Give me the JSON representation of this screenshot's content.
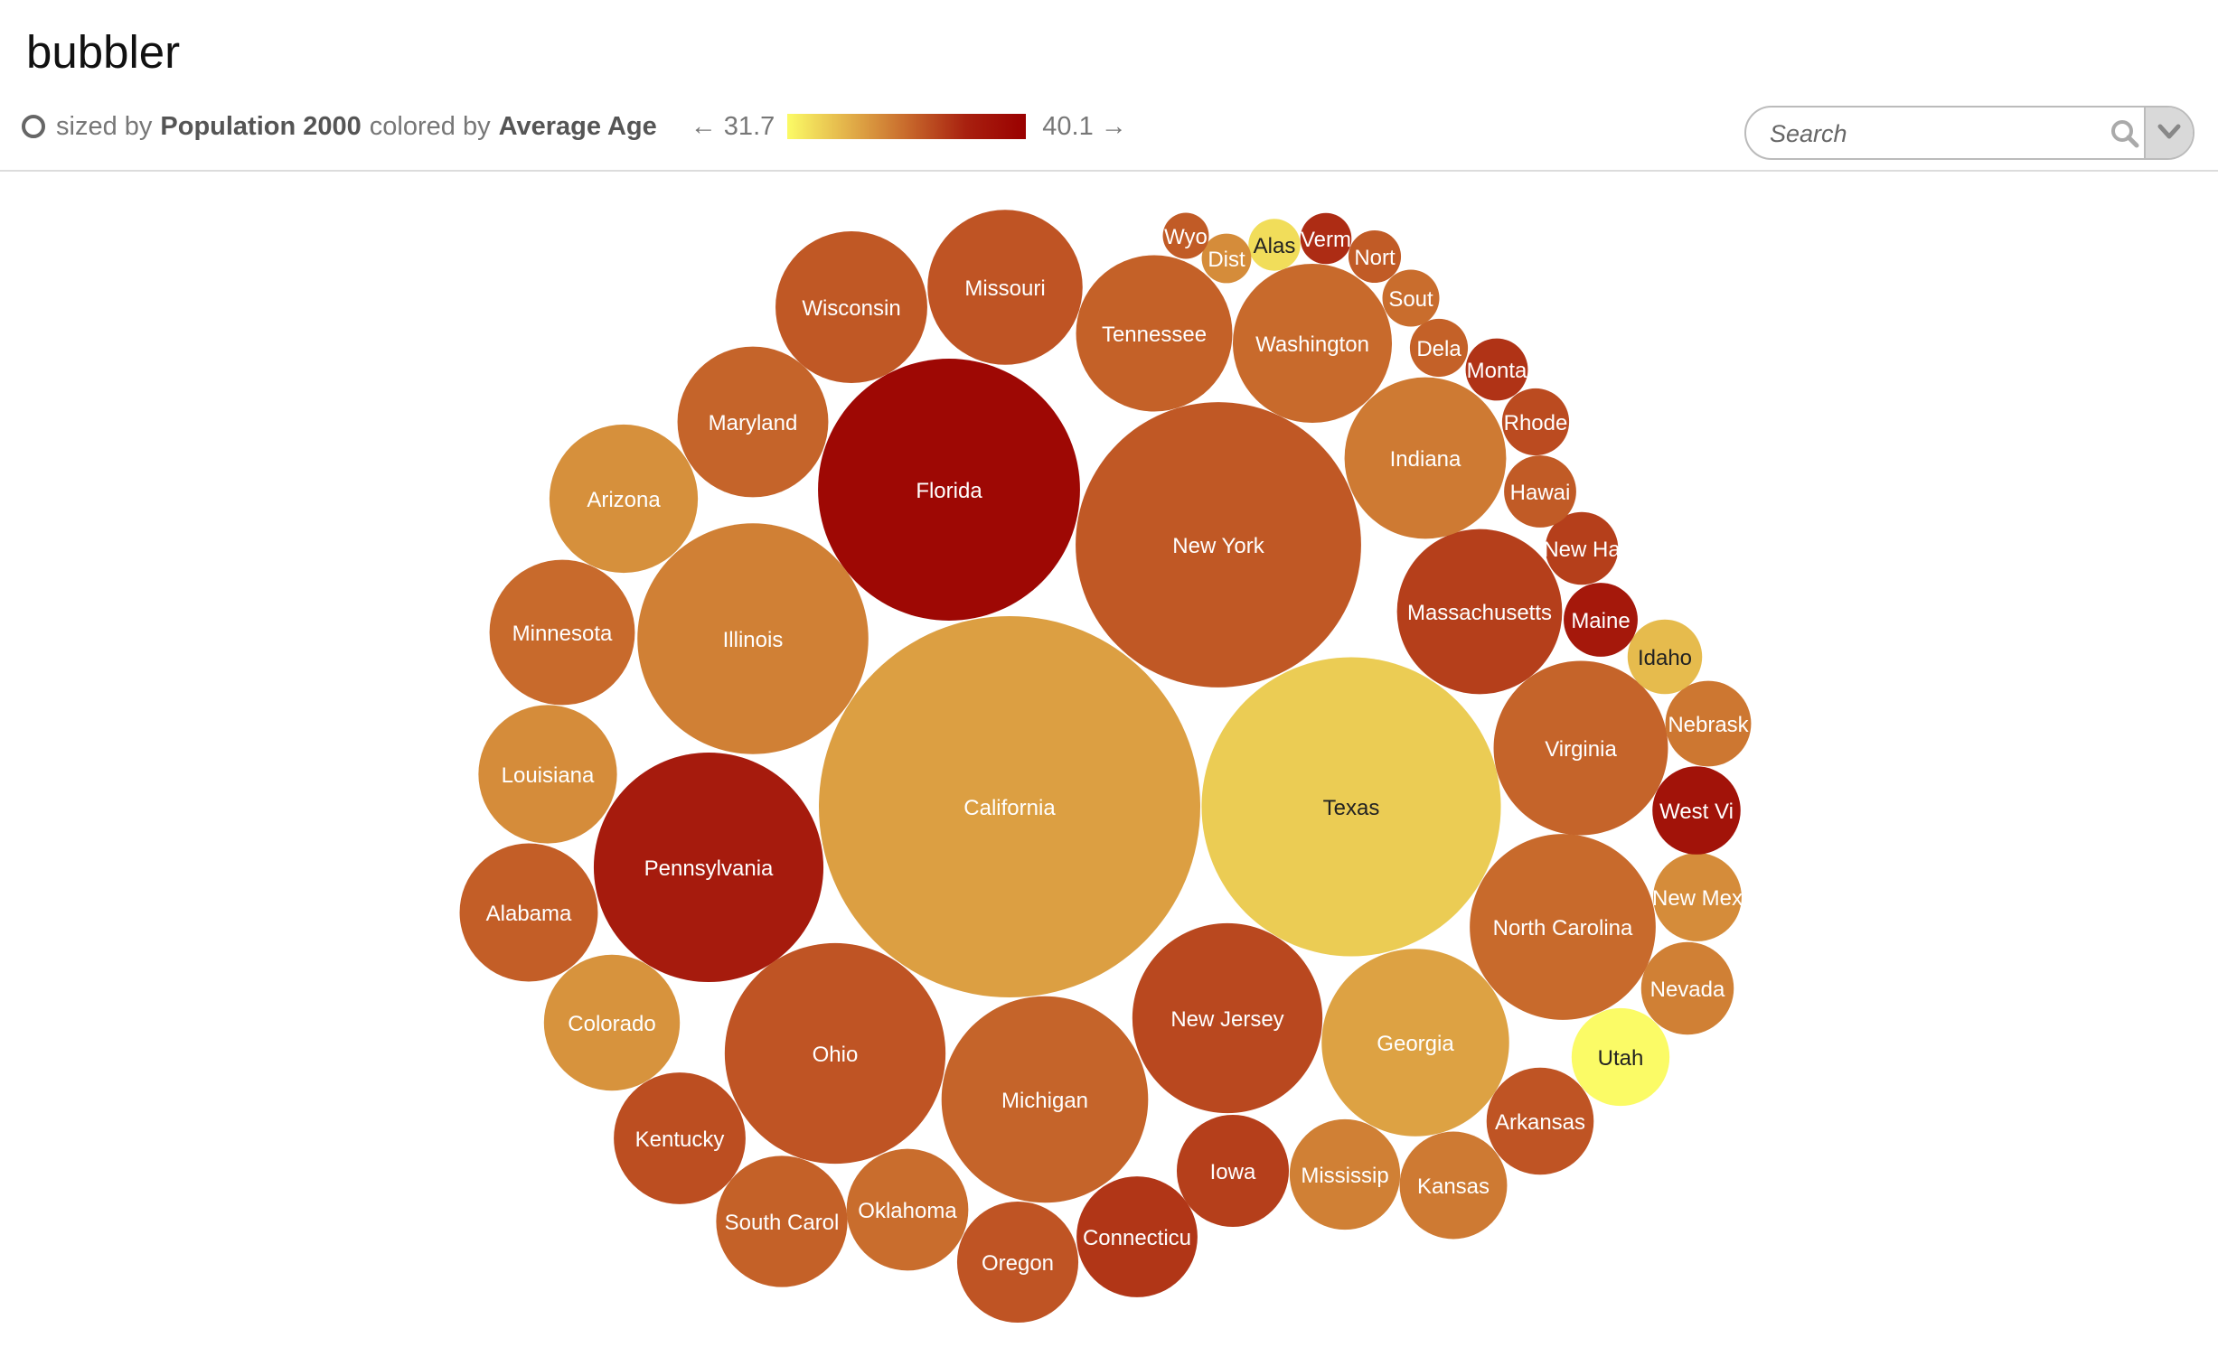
{
  "app": {
    "title": "bubbler"
  },
  "header": {
    "sized_by_prefix": "sized by",
    "size_field": "Population 2000",
    "colored_by_prefix": "colored by",
    "color_field": "Average Age",
    "legend_min": "← 31.7",
    "legend_max": "40.1 →",
    "gradient_colors": [
      "#fbfb66",
      "#e3b24a",
      "#c86a2c",
      "#a8200f",
      "#9a0000"
    ]
  },
  "search": {
    "placeholder": "Search",
    "icon": "search-icon",
    "dropdown_icon": "chevron-down-icon"
  },
  "chart_data": {
    "type": "bubble",
    "size_field": "Population 2000",
    "color_field": "Average Age",
    "color_range": [
      31.7,
      40.1
    ],
    "bubbles": [
      {
        "label": "California",
        "population": 33871648,
        "age": 34.0
      },
      {
        "label": "Texas",
        "population": 20851820,
        "age": 32.8
      },
      {
        "label": "New York",
        "population": 18976457,
        "age": 36.3
      },
      {
        "label": "Florida",
        "population": 15982378,
        "age": 39.6
      },
      {
        "label": "Illinois",
        "population": 12419293,
        "age": 35.0
      },
      {
        "label": "Pennsylvania",
        "population": 12281054,
        "age": 38.4
      },
      {
        "label": "Ohio",
        "population": 11353140,
        "age": 36.4
      },
      {
        "label": "Michigan",
        "population": 9938444,
        "age": 35.9
      },
      {
        "label": "New Jersey",
        "population": 8414350,
        "age": 36.8
      },
      {
        "label": "Georgia",
        "population": 8186453,
        "age": 33.9
      },
      {
        "label": "North Carolina",
        "population": 8049313,
        "age": 35.7
      },
      {
        "label": "Virginia",
        "population": 7078515,
        "age": 35.9
      },
      {
        "label": "Massachusetts",
        "population": 6349097,
        "age": 37.1
      },
      {
        "label": "Indiana",
        "population": 6080485,
        "age": 35.2
      },
      {
        "label": "Washington",
        "population": 5894121,
        "age": 35.7
      },
      {
        "label": "Tennessee",
        "population": 5689283,
        "age": 36.0
      },
      {
        "label": "Missouri",
        "population": 5595211,
        "age": 36.4
      },
      {
        "label": "Wisconsin",
        "population": 5363675,
        "age": 36.3
      },
      {
        "label": "Maryland",
        "population": 5296486,
        "age": 35.9
      },
      {
        "label": "Arizona",
        "population": 5130632,
        "age": 34.5
      },
      {
        "label": "Minnesota",
        "population": 4919479,
        "age": 35.7
      },
      {
        "label": "Louisiana",
        "population": 4468976,
        "age": 34.6
      },
      {
        "label": "Alabama",
        "population": 4447100,
        "age": 36.1
      },
      {
        "label": "Colorado",
        "population": 4301261,
        "age": 34.4
      },
      {
        "label": "Kentucky",
        "population": 4041769,
        "age": 36.6
      },
      {
        "label": "South Carol",
        "population": 4012012,
        "age": 36.0
      },
      {
        "label": "Oklahoma",
        "population": 3450654,
        "age": 35.6
      },
      {
        "label": "Oregon",
        "population": 3421399,
        "age": 36.4
      },
      {
        "label": "Connecticu",
        "population": 3405565,
        "age": 37.4
      },
      {
        "label": "Iowa",
        "population": 2926324,
        "age": 37.1
      },
      {
        "label": "Mississip",
        "population": 2844658,
        "age": 35.0
      },
      {
        "label": "Kansas",
        "population": 2688418,
        "age": 35.2
      },
      {
        "label": "Arkansas",
        "population": 2673400,
        "age": 36.4
      },
      {
        "label": "Utah",
        "population": 2233169,
        "age": 31.7
      },
      {
        "label": "Nevada",
        "population": 1998257,
        "age": 35.0
      },
      {
        "label": "New Mex",
        "population": 1819046,
        "age": 34.6
      },
      {
        "label": "West Vi",
        "population": 1808344,
        "age": 38.9
      },
      {
        "label": "Nebrask",
        "population": 1711263,
        "age": 35.3
      },
      {
        "label": "Idaho",
        "population": 1293953,
        "age": 33.2
      },
      {
        "label": "Maine",
        "population": 1274923,
        "age": 38.6
      },
      {
        "label": "New Ha",
        "population": 1235786,
        "age": 37.1
      },
      {
        "label": "Hawai",
        "population": 1211537,
        "age": 36.2
      },
      {
        "label": "Rhode",
        "population": 1048319,
        "age": 36.7
      },
      {
        "label": "Monta",
        "population": 902195,
        "age": 37.5
      },
      {
        "label": "Dela",
        "population": 783600,
        "age": 36.0
      },
      {
        "label": "Sout",
        "population": 754844,
        "age": 35.6
      },
      {
        "label": "Nort",
        "population": 642200,
        "age": 36.2
      },
      {
        "label": "Alas",
        "population": 626932,
        "age": 32.4
      },
      {
        "label": "Verm",
        "population": 608827,
        "age": 37.7
      },
      {
        "label": "Dist",
        "population": 572059,
        "age": 34.6
      },
      {
        "label": "Wyo",
        "population": 493782,
        "age": 36.2
      }
    ]
  }
}
